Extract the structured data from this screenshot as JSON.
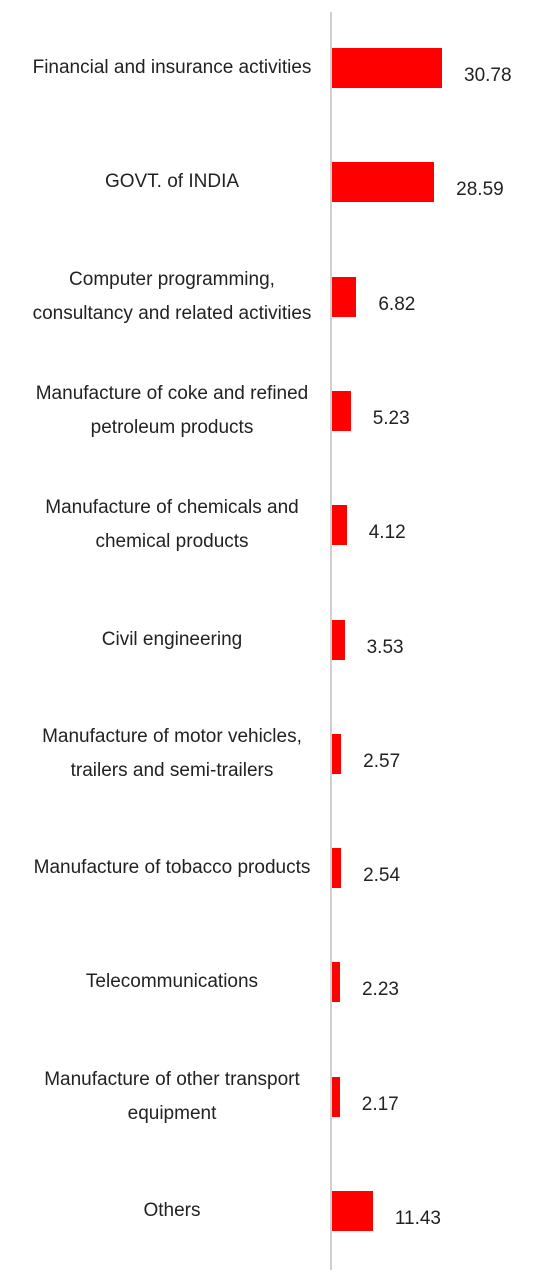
{
  "chart_data": {
    "type": "bar",
    "orientation": "horizontal",
    "color": "#ff0000",
    "categories": [
      "Financial and insurance activities",
      "GOVT. of INDIA",
      "Computer programming, consultancy and related activities",
      "Manufacture of coke and refined petroleum products",
      "Manufacture of chemicals and chemical products",
      "Civil engineering",
      "Manufacture of motor vehicles, trailers and semi-trailers",
      "Manufacture of tobacco products",
      "Telecommunications",
      "Manufacture of other transport equipment",
      "Others"
    ],
    "values": [
      30.78,
      28.59,
      6.82,
      5.23,
      4.12,
      3.53,
      2.57,
      2.54,
      2.23,
      2.17,
      11.43
    ]
  }
}
